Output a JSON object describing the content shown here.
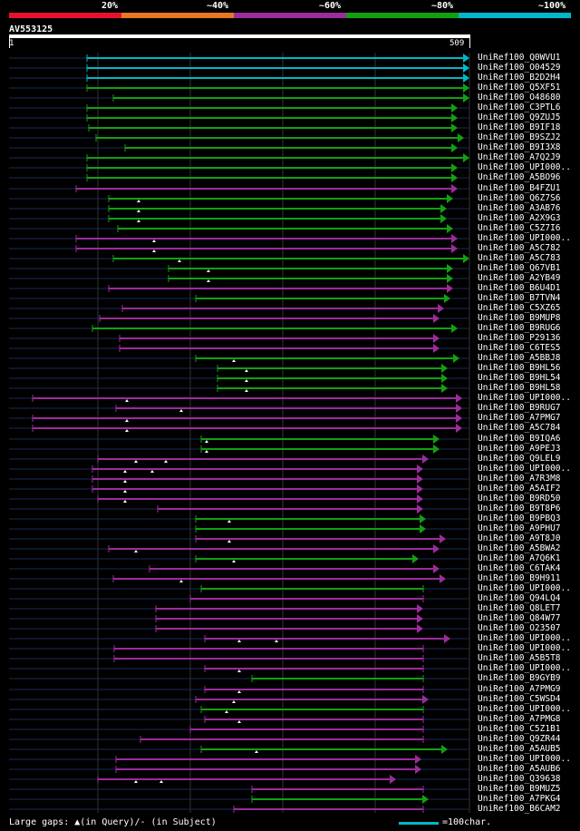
{
  "legend": {
    "labels": [
      "20%",
      "~40%",
      "~60%",
      "~80%",
      "~100%"
    ],
    "colors": [
      "#e8112d",
      "#e87722",
      "#9b2c9b",
      "#12a012",
      "#00b8c8"
    ]
  },
  "query": {
    "name": "AV553125",
    "start": "1",
    "end": "509"
  },
  "hits": [
    {
      "label": "UniRef100_Q0WVU1",
      "start": 96,
      "end": 518,
      "color": "cyan",
      "arrow": true
    },
    {
      "label": "UniRef100_O04529",
      "start": 96,
      "end": 518,
      "color": "cyan",
      "arrow": true
    },
    {
      "label": "UniRef100_B2D2H4",
      "start": 96,
      "end": 518,
      "color": "cyan",
      "arrow": true
    },
    {
      "label": "UniRef100_Q5XF51",
      "start": 96,
      "end": 518,
      "color": "green",
      "arrow": true
    },
    {
      "label": "UniRef100_O48680",
      "start": 125,
      "end": 518,
      "color": "green",
      "arrow": true
    },
    {
      "label": "UniRef100_C3PTL6",
      "start": 96,
      "end": 505,
      "color": "green",
      "arrow": true
    },
    {
      "label": "UniRef100_Q9ZUJ5",
      "start": 96,
      "end": 505,
      "color": "green",
      "arrow": true
    },
    {
      "label": "UniRef100_B9IF18",
      "start": 98,
      "end": 505,
      "color": "green",
      "arrow": true
    },
    {
      "label": "UniRef100_B9SZJ2",
      "start": 106,
      "end": 512,
      "color": "green",
      "arrow": true
    },
    {
      "label": "UniRef100_B9I3X8",
      "start": 138,
      "end": 505,
      "color": "green",
      "arrow": true
    },
    {
      "label": "UniRef100_A7Q2J9",
      "start": 96,
      "end": 518,
      "color": "green",
      "arrow": true
    },
    {
      "label": "UniRef100_UPI000..",
      "start": 96,
      "end": 505,
      "color": "green",
      "arrow": true
    },
    {
      "label": "UniRef100_A5BO96",
      "start": 96,
      "end": 505,
      "color": "green",
      "arrow": true
    },
    {
      "label": "UniRef100_B4FZU1",
      "start": 84,
      "end": 505,
      "color": "magenta",
      "arrow": true
    },
    {
      "label": "UniRef100_Q6Z7S6",
      "start": 120,
      "end": 500,
      "color": "green",
      "arrow": true,
      "gaps": [
        153
      ]
    },
    {
      "label": "UniRef100_A3AB76",
      "start": 120,
      "end": 493,
      "color": "green",
      "arrow": true,
      "gaps": [
        153
      ]
    },
    {
      "label": "UniRef100_A2X9G3",
      "start": 120,
      "end": 493,
      "color": "green",
      "arrow": true,
      "gaps": [
        153
      ]
    },
    {
      "label": "UniRef100_C5Z7I6",
      "start": 130,
      "end": 500,
      "color": "green",
      "arrow": true
    },
    {
      "label": "UniRef100_UPI000..",
      "start": 84,
      "end": 505,
      "color": "magenta",
      "arrow": true,
      "gaps": [
        170
      ]
    },
    {
      "label": "UniRef100_A5C782",
      "start": 84,
      "end": 505,
      "color": "magenta",
      "arrow": true,
      "gaps": [
        170
      ]
    },
    {
      "label": "UniRef100_A5C783",
      "start": 125,
      "end": 518,
      "color": "green",
      "arrow": true,
      "gaps": [
        198
      ]
    },
    {
      "label": "UniRef100_Q67VB1",
      "start": 186,
      "end": 500,
      "color": "green",
      "arrow": true,
      "gaps": [
        230
      ]
    },
    {
      "label": "UniRef100_A2YB49",
      "start": 186,
      "end": 500,
      "color": "green",
      "arrow": true,
      "gaps": [
        230
      ]
    },
    {
      "label": "UniRef100_B6U4D1",
      "start": 120,
      "end": 500,
      "color": "magenta",
      "arrow": true
    },
    {
      "label": "UniRef100_B7TVN4",
      "start": 216,
      "end": 497,
      "color": "green",
      "arrow": true
    },
    {
      "label": "UniRef100_C5XZ65",
      "start": 135,
      "end": 490,
      "color": "magenta",
      "arrow": true
    },
    {
      "label": "UniRef100_B9MUP8",
      "start": 110,
      "end": 485,
      "color": "magenta",
      "arrow": true
    },
    {
      "label": "UniRef100_B9RUG6",
      "start": 102,
      "end": 505,
      "color": "green",
      "arrow": true
    },
    {
      "label": "UniRef100_P29136",
      "start": 132,
      "end": 485,
      "color": "magenta",
      "arrow": true
    },
    {
      "label": "UniRef100_C6TES5",
      "start": 132,
      "end": 485,
      "color": "magenta",
      "arrow": true
    },
    {
      "label": "UniRef100_A5BBJ8",
      "start": 216,
      "end": 507,
      "color": "green",
      "arrow": true,
      "gaps": [
        258
      ]
    },
    {
      "label": "UniRef100_B9HL56",
      "start": 240,
      "end": 494,
      "color": "green",
      "arrow": true,
      "gaps": [
        272
      ]
    },
    {
      "label": "UniRef100_B9HL54",
      "start": 240,
      "end": 494,
      "color": "green",
      "arrow": true,
      "gaps": [
        272
      ]
    },
    {
      "label": "UniRef100_B9HL58",
      "start": 240,
      "end": 494,
      "color": "green",
      "arrow": true,
      "gaps": [
        272
      ]
    },
    {
      "label": "UniRef100_UPI000..",
      "start": 36,
      "end": 510,
      "color": "magenta",
      "arrow": true,
      "gaps": [
        140
      ]
    },
    {
      "label": "UniRef100_B9RUG7",
      "start": 128,
      "end": 510,
      "color": "magenta",
      "arrow": true,
      "gaps": [
        200
      ]
    },
    {
      "label": "UniRef100_A7PMG7",
      "start": 36,
      "end": 510,
      "color": "magenta",
      "arrow": true,
      "gaps": [
        140
      ]
    },
    {
      "label": "UniRef100_A5C784",
      "start": 36,
      "end": 510,
      "color": "magenta",
      "arrow": true,
      "gaps": [
        140
      ]
    },
    {
      "label": "UniRef100_B9IQA6",
      "start": 222,
      "end": 485,
      "color": "green",
      "arrow": true,
      "gaps": [
        228
      ]
    },
    {
      "label": "UniRef100_A9PEJ3",
      "start": 222,
      "end": 485,
      "color": "green",
      "arrow": true,
      "gaps": [
        228
      ]
    },
    {
      "label": "UniRef100_Q9LEL9",
      "start": 108,
      "end": 473,
      "color": "magenta",
      "arrow": true,
      "gaps": [
        150,
        183
      ]
    },
    {
      "label": "UniRef100_UPI000..",
      "start": 102,
      "end": 467,
      "color": "magenta",
      "arrow": true,
      "gaps": [
        138,
        168
      ]
    },
    {
      "label": "UniRef100_A7R3M8",
      "start": 102,
      "end": 467,
      "color": "magenta",
      "arrow": true,
      "gaps": [
        138
      ]
    },
    {
      "label": "UniRef100_A5AIF2",
      "start": 102,
      "end": 467,
      "color": "magenta",
      "arrow": true,
      "gaps": [
        138
      ]
    },
    {
      "label": "UniRef100_B9RD50",
      "start": 108,
      "end": 467,
      "color": "magenta",
      "arrow": true,
      "gaps": [
        138
      ]
    },
    {
      "label": "UniRef100_B9T8P6",
      "start": 174,
      "end": 467,
      "color": "magenta",
      "arrow": true
    },
    {
      "label": "UniRef100_B9PBQ3",
      "start": 216,
      "end": 470,
      "color": "green",
      "arrow": true,
      "gaps": [
        253
      ]
    },
    {
      "label": "UniRef100_A9PHU7",
      "start": 216,
      "end": 470,
      "color": "green",
      "arrow": true
    },
    {
      "label": "UniRef100_A9T8J0",
      "start": 216,
      "end": 492,
      "color": "magenta",
      "arrow": true,
      "gaps": [
        253
      ]
    },
    {
      "label": "UniRef100_A5BWA2",
      "start": 120,
      "end": 485,
      "color": "magenta",
      "arrow": true,
      "gaps": [
        150
      ]
    },
    {
      "label": "UniRef100_A7Q6K1",
      "start": 216,
      "end": 462,
      "color": "green",
      "arrow": true,
      "gaps": [
        258
      ]
    },
    {
      "label": "UniRef100_C6TAK4",
      "start": 165,
      "end": 485,
      "color": "magenta",
      "arrow": true
    },
    {
      "label": "UniRef100_B9H911",
      "start": 125,
      "end": 492,
      "color": "magenta",
      "arrow": true,
      "gaps": [
        200
      ]
    },
    {
      "label": "UniRef100_UPI000..",
      "start": 222,
      "end": 467,
      "color": "green",
      "arrow": false
    },
    {
      "label": "UniRef100_Q94LQ4",
      "start": 210,
      "end": 467,
      "color": "magenta",
      "arrow": false
    },
    {
      "label": "UniRef100_Q8LET7",
      "start": 172,
      "end": 467,
      "color": "magenta",
      "arrow": true
    },
    {
      "label": "UniRef100_Q84W77",
      "start": 172,
      "end": 467,
      "color": "magenta",
      "arrow": true
    },
    {
      "label": "UniRef100_O23507",
      "start": 172,
      "end": 467,
      "color": "magenta",
      "arrow": true
    },
    {
      "label": "UniRef100_UPI000..",
      "start": 226,
      "end": 497,
      "color": "magenta",
      "arrow": true,
      "gaps": [
        264,
        305
      ]
    },
    {
      "label": "UniRef100_UPI000..",
      "start": 126,
      "end": 467,
      "color": "magenta",
      "arrow": false
    },
    {
      "label": "UniRef100_A5B5T8",
      "start": 126,
      "end": 467,
      "color": "magenta",
      "arrow": false
    },
    {
      "label": "UniRef100_UPI000..",
      "start": 226,
      "end": 467,
      "color": "magenta",
      "arrow": false,
      "gaps": [
        264
      ]
    },
    {
      "label": "UniRef100_B9GYB9",
      "start": 278,
      "end": 467,
      "color": "green",
      "arrow": false
    },
    {
      "label": "UniRef100_A7PMG9",
      "start": 226,
      "end": 467,
      "color": "magenta",
      "arrow": false,
      "gaps": [
        264
      ]
    },
    {
      "label": "UniRef100_C5WSD4",
      "start": 216,
      "end": 473,
      "color": "magenta",
      "arrow": true,
      "gaps": [
        258
      ]
    },
    {
      "label": "UniRef100_UPI000..",
      "start": 222,
      "end": 467,
      "color": "green",
      "arrow": false,
      "gaps": [
        250
      ]
    },
    {
      "label": "UniRef100_A7PMG8",
      "start": 226,
      "end": 467,
      "color": "magenta",
      "arrow": false,
      "gaps": [
        264
      ]
    },
    {
      "label": "UniRef100_C5Z1B1",
      "start": 210,
      "end": 467,
      "color": "magenta",
      "arrow": false
    },
    {
      "label": "UniRef100_Q9ZR44",
      "start": 155,
      "end": 467,
      "color": "magenta",
      "arrow": false
    },
    {
      "label": "UniRef100_A5AUB5",
      "start": 222,
      "end": 494,
      "color": "green",
      "arrow": true,
      "gaps": [
        283
      ]
    },
    {
      "label": "UniRef100_UPI000..",
      "start": 128,
      "end": 465,
      "color": "magenta",
      "arrow": true
    },
    {
      "label": "UniRef100_A5AUB6",
      "start": 128,
      "end": 465,
      "color": "magenta",
      "arrow": true
    },
    {
      "label": "UniRef100_Q39638",
      "start": 108,
      "end": 437,
      "color": "magenta",
      "arrow": true,
      "gaps": [
        150,
        178
      ]
    },
    {
      "label": "UniRef100_B9MUZ5",
      "start": 278,
      "end": 467,
      "color": "magenta",
      "arrow": false
    },
    {
      "label": "UniRef100_A7PKG4",
      "start": 278,
      "end": 473,
      "color": "green",
      "arrow": true
    },
    {
      "label": "UniRef100_B6CAM2",
      "start": 258,
      "end": 467,
      "color": "magenta",
      "arrow": false
    }
  ],
  "footer": {
    "large_gaps": "Large gaps: ▲(in Query)/- (in Subject)",
    "scale": "=100char."
  }
}
